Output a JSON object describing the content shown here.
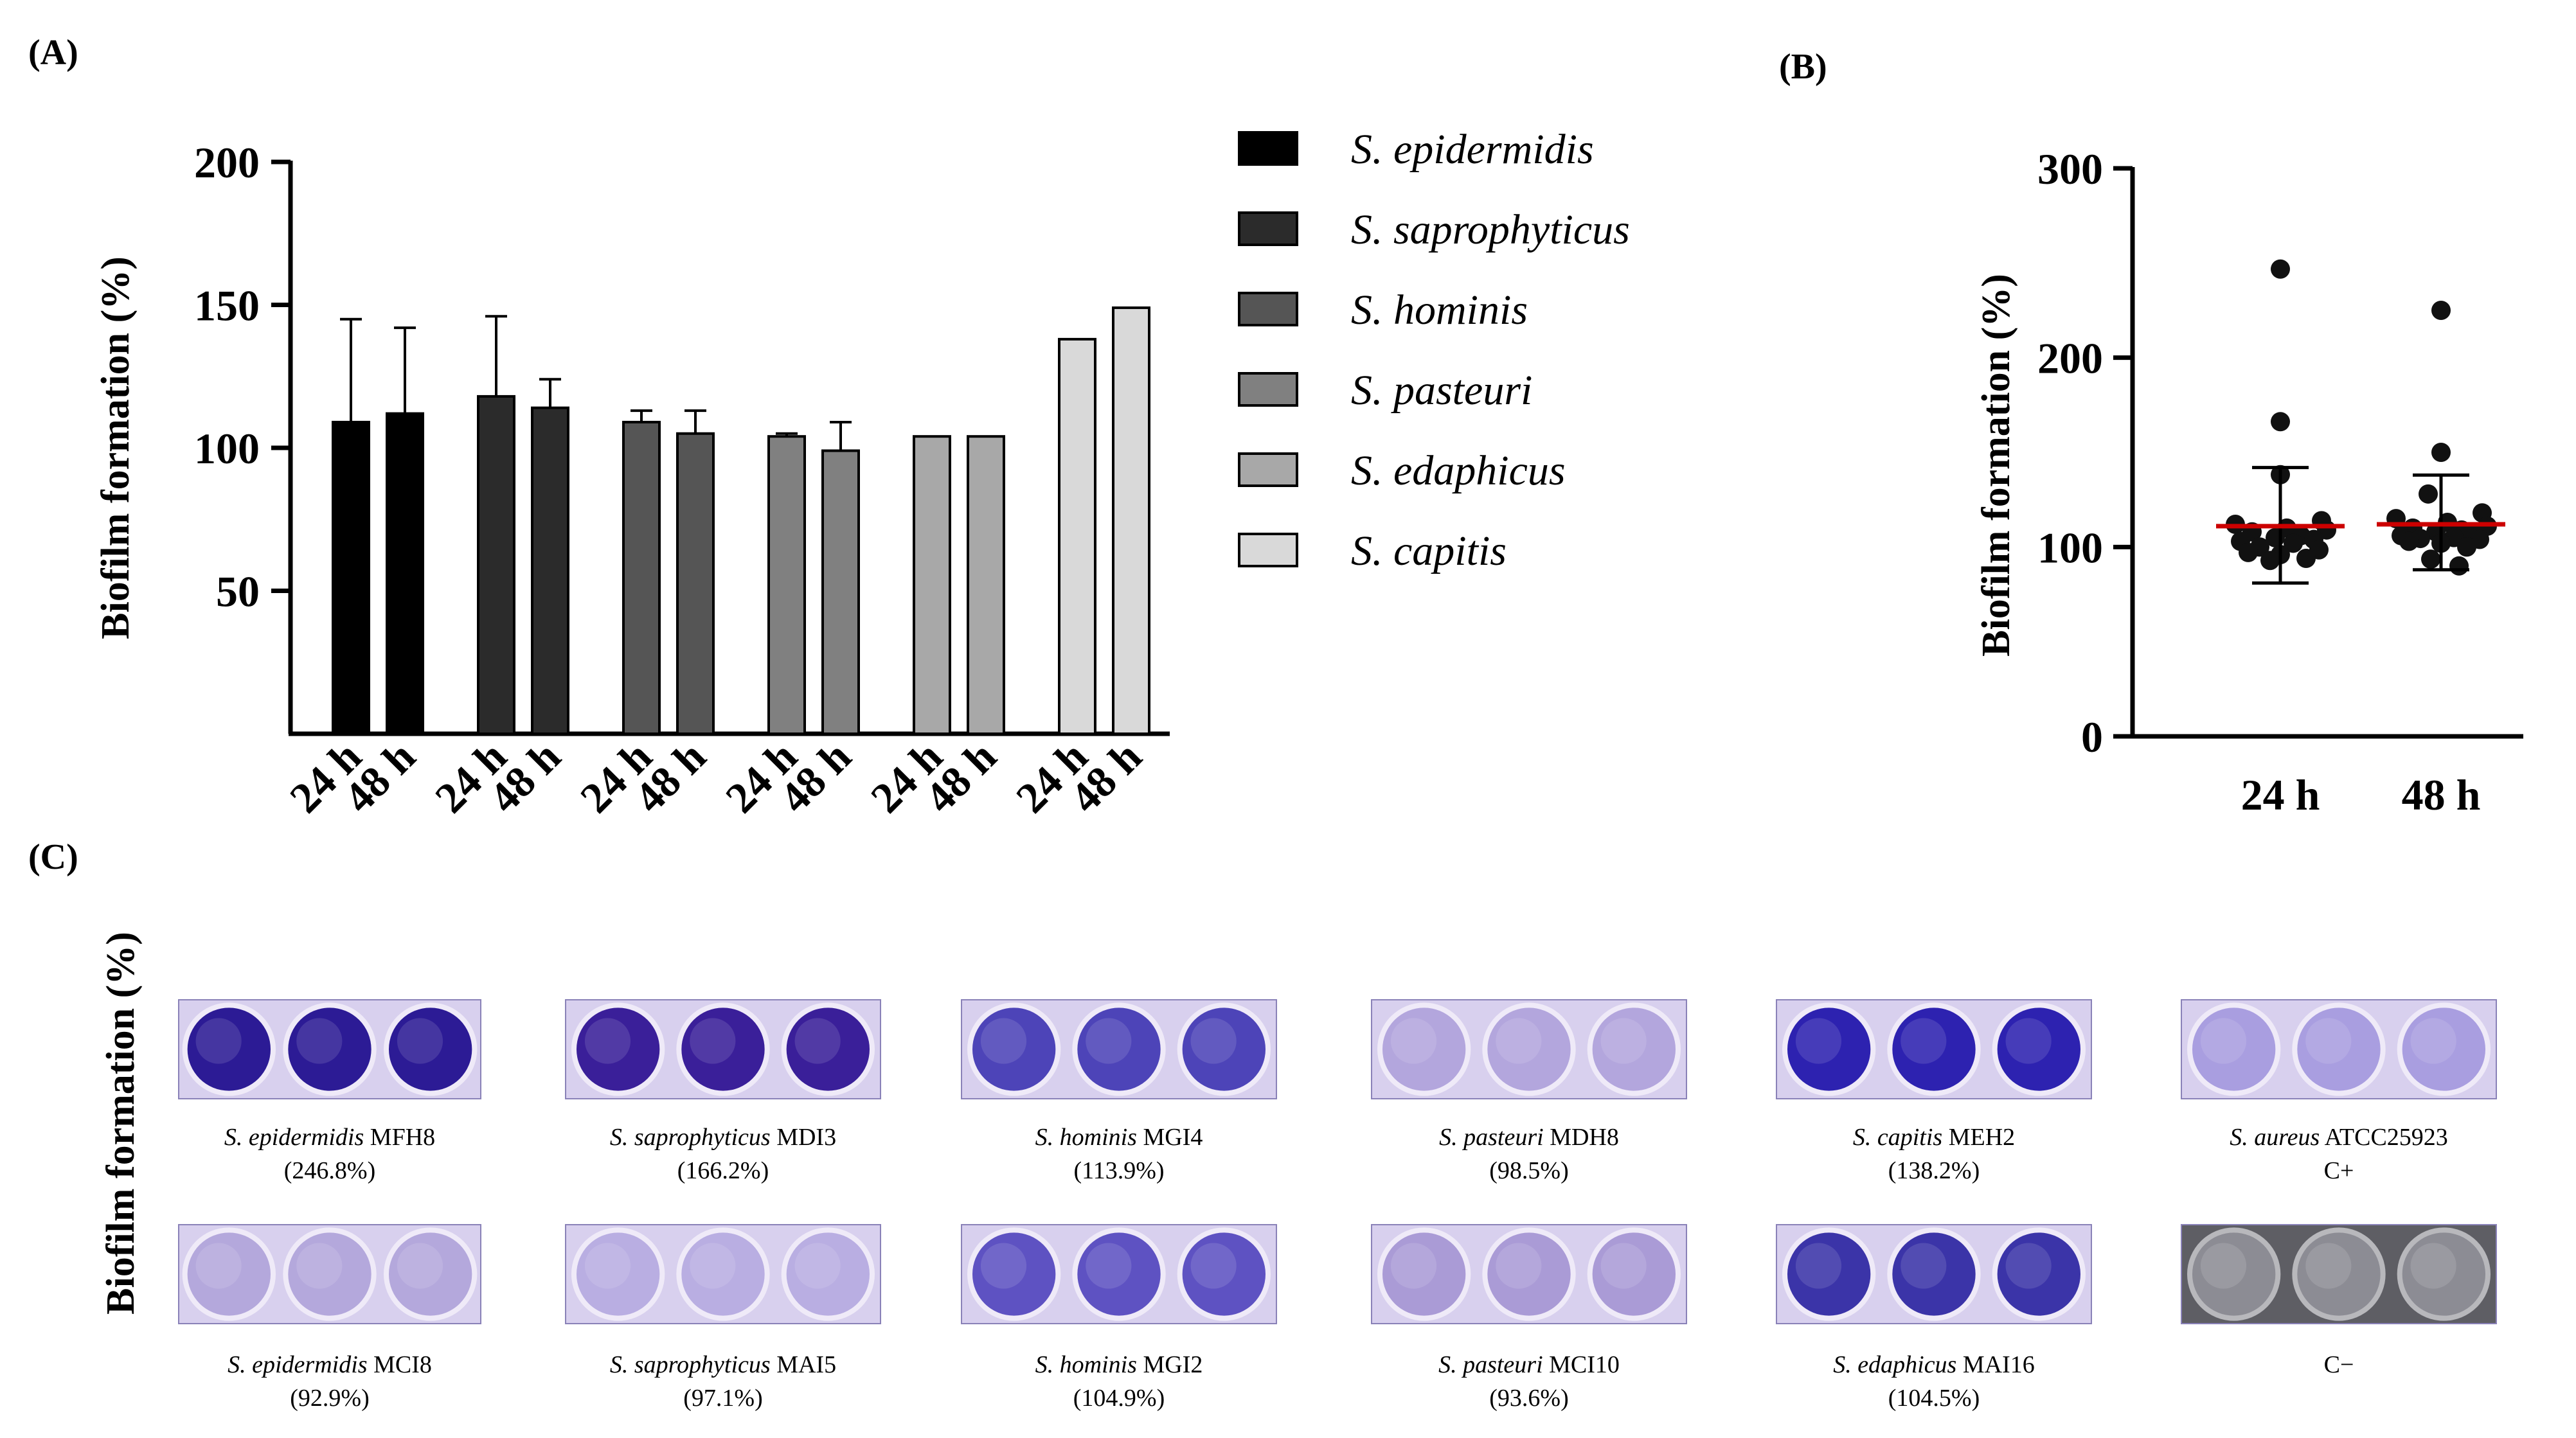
{
  "panels": {
    "a": "(A)",
    "b": "(B)",
    "c": "(C)"
  },
  "chart_data": [
    {
      "id": "A",
      "type": "bar",
      "ylabel": "Biofilm formation (%)",
      "yticks": [
        50,
        100,
        150,
        200
      ],
      "ylim": [
        0,
        200
      ],
      "categories": [
        "24 h",
        "48 h"
      ],
      "legend_position": "right",
      "series": [
        {
          "name": "S. epidermidis",
          "color": "#000000",
          "values": [
            109,
            112
          ],
          "errors": [
            36,
            30
          ]
        },
        {
          "name": "S. saprophyticus",
          "color": "#2b2b2b",
          "values": [
            118,
            114
          ],
          "errors": [
            28,
            10
          ]
        },
        {
          "name": "S. hominis",
          "color": "#555555",
          "values": [
            109,
            105
          ],
          "errors": [
            4,
            8
          ]
        },
        {
          "name": "S. pasteuri",
          "color": "#808080",
          "values": [
            104,
            99
          ],
          "errors": [
            1,
            10
          ]
        },
        {
          "name": "S. edaphicus",
          "color": "#a8a8a8",
          "values": [
            104,
            104
          ],
          "errors": [
            0,
            0
          ]
        },
        {
          "name": "S. capitis",
          "color": "#d9d9d9",
          "values": [
            138,
            149
          ],
          "errors": [
            0,
            0
          ]
        }
      ]
    },
    {
      "id": "B",
      "type": "scatter",
      "ylabel": "Biofilm formation (%)",
      "yticks": [
        0,
        100,
        200,
        300
      ],
      "ylim": [
        0,
        300
      ],
      "categories": [
        "24 h",
        "48 h"
      ],
      "mean_color": "#cc0000",
      "groups": [
        {
          "label": "24 h",
          "mean": 111,
          "upper": 142,
          "lower": 81,
          "points": [
            246.8,
            166.2,
            138.2,
            113.9,
            112,
            110,
            109,
            108,
            106,
            104.9,
            104,
            103,
            102,
            100,
            98.5,
            97.1,
            96,
            94,
            92.9
          ]
        },
        {
          "label": "48 h",
          "mean": 112,
          "upper": 138,
          "lower": 88,
          "points": [
            225,
            150,
            128,
            118,
            115,
            113,
            111,
            110,
            109,
            108,
            107,
            106,
            105,
            104.5,
            104,
            103,
            102,
            100,
            93.6,
            90
          ]
        }
      ]
    }
  ],
  "panelC": {
    "ylabel": "Biofilm formation (%)",
    "rows": [
      [
        {
          "species": "S. epidermidis",
          "strain": "MFH8",
          "value": "(246.8%)",
          "well_color": "#2c1b95"
        },
        {
          "species": "S. saprophyticus",
          "strain": "MDI3",
          "value": "(166.2%)",
          "well_color": "#3a1f99"
        },
        {
          "species": "S. hominis",
          "strain": "MGI4",
          "value": "(113.9%)",
          "well_color": "#4d44b8"
        },
        {
          "species": "S. pasteuri",
          "strain": "MDH8",
          "value": "(98.5%)",
          "well_color": "#b3a6dd"
        },
        {
          "species": "S. capitis",
          "strain": "MEH2",
          "value": "(138.2%)",
          "well_color": "#2d22b0"
        },
        {
          "species": "S. aureus",
          "strain": "ATCC25923",
          "value": "C+",
          "well_color": "#a99ee0"
        }
      ],
      [
        {
          "species": "S. epidermidis",
          "strain": "MCI8",
          "value": "(92.9%)",
          "well_color": "#b4a8dc"
        },
        {
          "species": "S. saprophyticus",
          "strain": "MAI5",
          "value": "(97.1%)",
          "well_color": "#b9aee2"
        },
        {
          "species": "S. hominis",
          "strain": "MGI2",
          "value": "(104.9%)",
          "well_color": "#5e52c2"
        },
        {
          "species": "S. pasteuri",
          "strain": "MCI10",
          "value": "(93.6%)",
          "well_color": "#aa9bd6"
        },
        {
          "species": "S. edaphicus",
          "strain": "MAI16",
          "value": "(104.5%)",
          "well_color": "#3b34a8"
        },
        {
          "species": "",
          "strain": "C−",
          "value": "",
          "well_color": "#8c8c94"
        }
      ]
    ]
  }
}
